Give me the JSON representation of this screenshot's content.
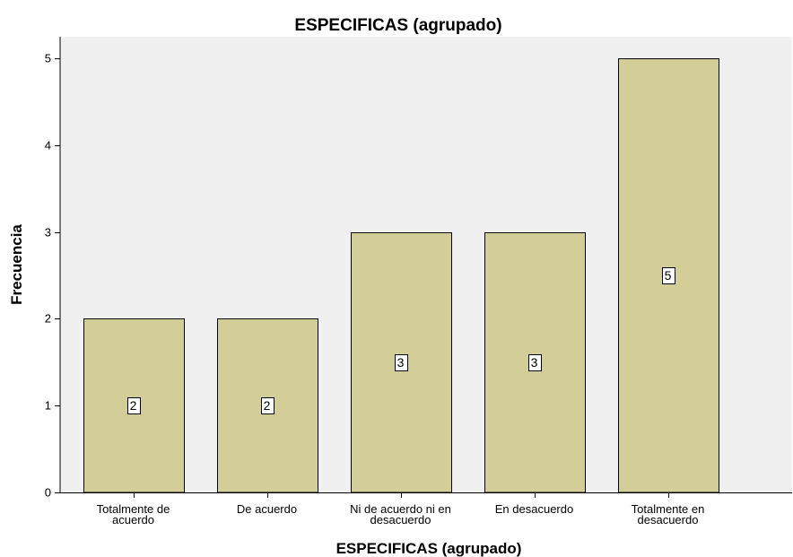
{
  "chart_data": {
    "type": "bar",
    "title": "ESPECIFICAS (agrupado)",
    "xlabel": "ESPECIFICAS (agrupado)",
    "ylabel": "Frecuencia",
    "categories": [
      [
        "Totalmente de",
        "acuerdo"
      ],
      [
        "De acuerdo"
      ],
      [
        "Ni de acuerdo ni en",
        "desacuerdo"
      ],
      [
        "En desacuerdo"
      ],
      [
        "Totalmente en",
        "desacuerdo"
      ]
    ],
    "values": [
      2,
      2,
      3,
      3,
      5
    ],
    "ylim": [
      0,
      5.25
    ],
    "yticks": [
      0,
      1,
      2,
      3,
      4,
      5
    ],
    "grid": false,
    "legend": "none",
    "colors": {
      "plot_background": "#f0f0f0",
      "bar_fill": "#d3ce97",
      "bar_stroke": "#000000",
      "label_box": "#ffffff"
    }
  }
}
